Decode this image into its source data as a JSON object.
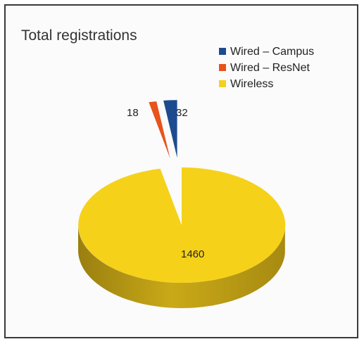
{
  "chart_data": {
    "type": "pie",
    "style": "3d-exploded",
    "title": "Total registrations",
    "legend_position": "top-right",
    "categories": [
      "Wired – Campus",
      "Wired – ResNet",
      "Wireless"
    ],
    "values": [
      32,
      18,
      1460
    ],
    "colors": [
      "#1d4b8f",
      "#e8531c",
      "#f5d11a"
    ],
    "labels": [
      "32",
      "18",
      "1460"
    ]
  }
}
